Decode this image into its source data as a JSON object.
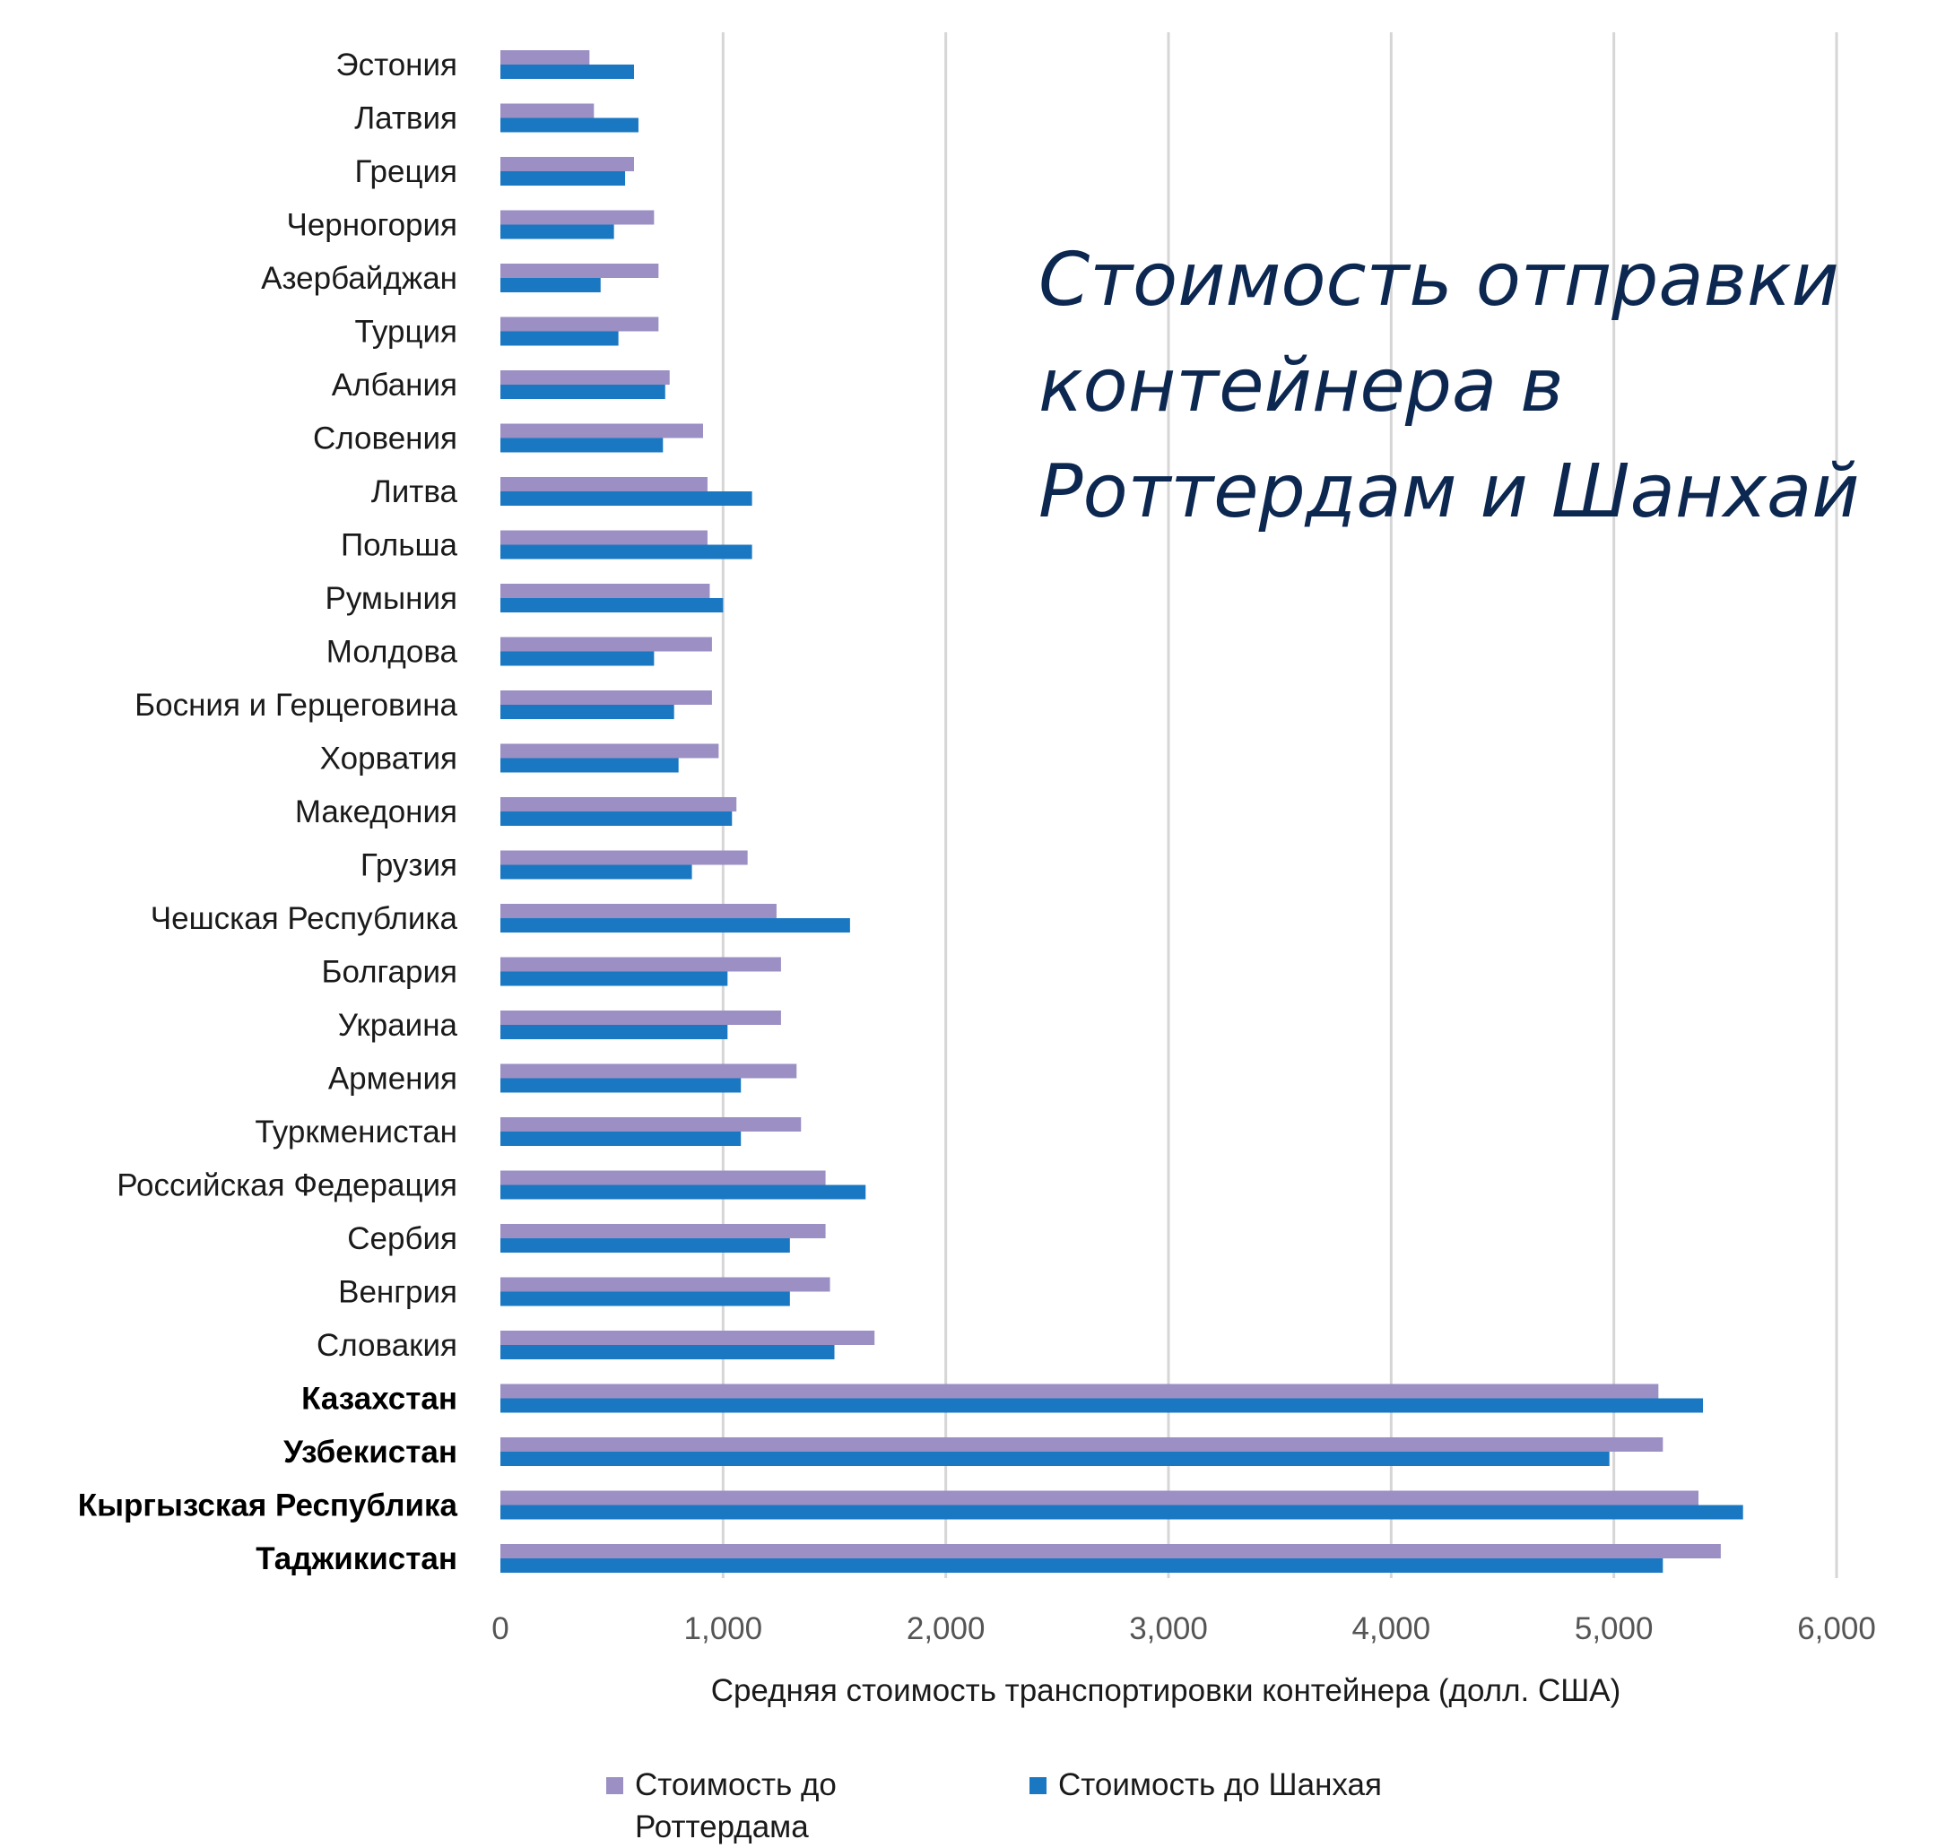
{
  "chart_data": {
    "type": "bar",
    "orientation": "horizontal",
    "title_lines": [
      "Стоимость отправки",
      "контейнера в",
      "Роттердам и Шанхай"
    ],
    "xlabel": "Средняя стоимость транспортировки контейнера (долл. США)",
    "xlim": [
      0,
      6000
    ],
    "xticks": [
      0,
      1000,
      2000,
      3000,
      4000,
      5000,
      6000
    ],
    "xtick_labels": [
      "0",
      "1,000",
      "2,000",
      "3,000",
      "4,000",
      "5,000",
      "6,000"
    ],
    "grid": true,
    "categories": [
      "Эстония",
      "Латвия",
      "Греция",
      "Черногория",
      "Азербайджан",
      "Турция",
      "Албания",
      "Словения",
      "Литва",
      "Польша",
      "Румыния",
      "Молдова",
      "Босния и Герцеговина",
      "Хорватия",
      "Македония",
      "Грузия",
      "Чешская Республика",
      "Болгария",
      "Украина",
      "Армения",
      "Туркменистан",
      "Российская Федерация",
      "Сербия",
      "Венгрия",
      "Словакия",
      "Казахстан",
      "Узбекистан",
      "Кыргызская Республика",
      "Таджикистан"
    ],
    "bold_categories": [
      "Казахстан",
      "Узбекистан",
      "Кыргызская Республика",
      "Таджикистан"
    ],
    "series": [
      {
        "name": "Стоимость до Роттердама",
        "color": "#9b8fc4",
        "values": [
          400,
          420,
          600,
          690,
          710,
          710,
          760,
          910,
          930,
          930,
          940,
          950,
          950,
          980,
          1060,
          1110,
          1240,
          1260,
          1260,
          1330,
          1350,
          1460,
          1460,
          1480,
          1680,
          5200,
          5220,
          5380,
          5480
        ]
      },
      {
        "name": "Стоимость до Шанхая",
        "color": "#1a78c2",
        "values": [
          600,
          620,
          560,
          510,
          450,
          530,
          740,
          730,
          1130,
          1130,
          1000,
          690,
          780,
          800,
          1040,
          860,
          1570,
          1020,
          1020,
          1080,
          1080,
          1640,
          1300,
          1300,
          1500,
          5400,
          4980,
          5580,
          5220
        ]
      }
    ],
    "legend": {
      "position": "bottom",
      "items": [
        {
          "label_lines": [
            "Стоимость до",
            "Роттердама"
          ],
          "color": "#9b8fc4"
        },
        {
          "label_lines": [
            "Стоимость до Шанхая"
          ],
          "color": "#1a78c2"
        }
      ]
    }
  }
}
